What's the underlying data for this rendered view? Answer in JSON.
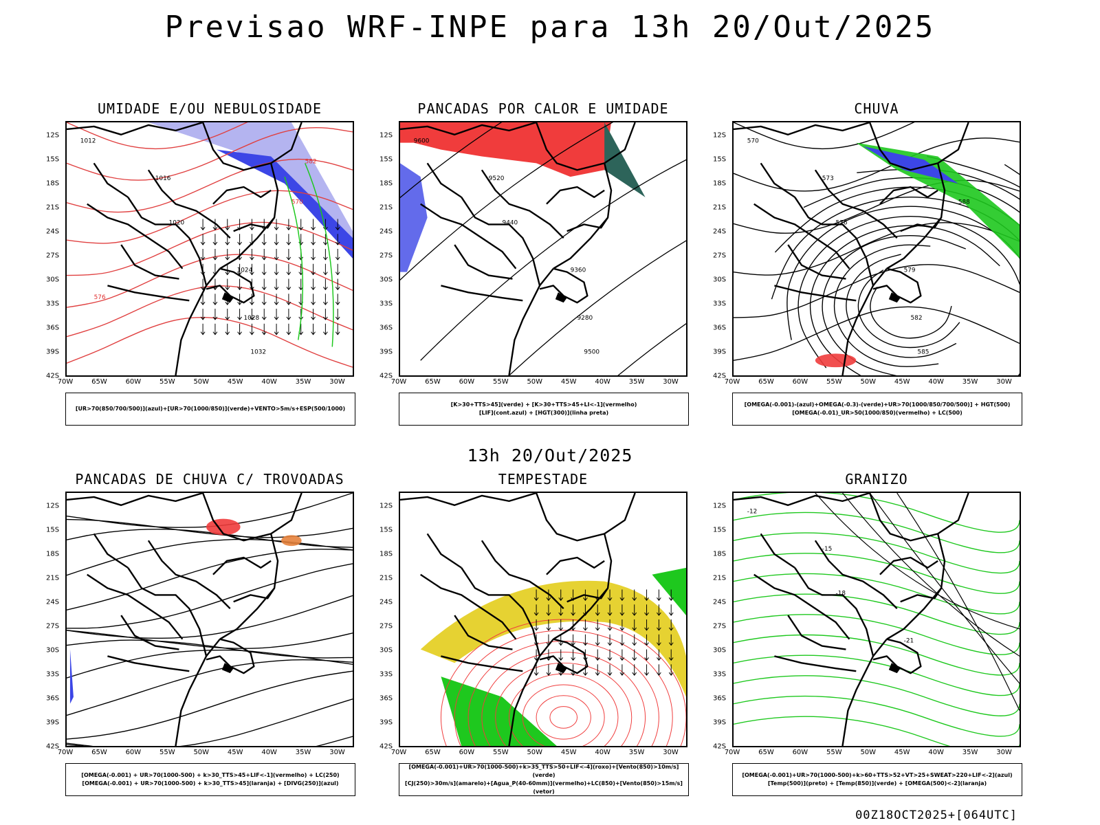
{
  "main_title": "Previsao WRF-INPE  para 13h 20/Out/2025",
  "mid_title": "13h 20/Out/2025",
  "footer": "00Z18OCT2025+[064UTC]",
  "lat_labels": [
    "12S",
    "15S",
    "18S",
    "21S",
    "24S",
    "27S",
    "30S",
    "33S",
    "36S",
    "39S",
    "42S"
  ],
  "lon_labels": [
    "70W",
    "65W",
    "60W",
    "55W",
    "50W",
    "45W",
    "40W",
    "35W",
    "30W"
  ],
  "colors": {
    "blue": "#3c46e6",
    "lavender": "#b4b4f0",
    "green": "#1ec81e",
    "red": "#f03c3c",
    "yellow": "#e6d232",
    "orange": "#e6823c",
    "teal": "#2d645a"
  },
  "panels": [
    {
      "title": "UMIDADE E/OU NEBULOSIDADE",
      "legend": [
        "[UR>70(850/700/500)](azul)+[UR>70(1000/850)](verde)+VENTO>5m/s+ESP(500/1000)"
      ],
      "labels": [
        "1012",
        "1016",
        "1020",
        "1024",
        "1028",
        "1032",
        "570",
        "576",
        "582"
      ]
    },
    {
      "title": "PANCADAS POR CALOR E UMIDADE",
      "legend": [
        "[K>30+TTS>45](verde) + [K>30+TTS>45+LI<-1](vermelho)",
        "[LIF](cont.azul) + [HGT(300)](linha preta)"
      ],
      "labels": [
        "9600",
        "9520",
        "9440",
        "9360",
        "9280",
        "9500"
      ]
    },
    {
      "title": "CHUVA",
      "legend": [
        "[OMEGA(-0.001)-(azul)+OMEGA(-0.3)-(verde)+UR>70(1000/850/700/500)] + HGT(500)",
        "[OMEGA(-0.01)_UR>50(1000/850)(vermelho) + LC(500)"
      ],
      "labels": [
        "570",
        "573",
        "576",
        "579",
        "582",
        "585",
        "588"
      ]
    },
    {
      "title": "PANCADAS DE CHUVA C/ TROVOADAS",
      "legend": [
        "[OMEGA(-0.001) + UR>70(1000-500) + k>30_TTS>45+LIF<-1](vermelho) + LC(250)",
        "[OMEGA(-0.001) + UR>70(1000-500) + k>30_TTS>45](laranja) + [DIVG(250)](azul)"
      ],
      "labels": []
    },
    {
      "title": "TEMPESTADE",
      "legend": [
        "[OMEGA(-0.001)+UR>70(1000-500)+k>35_TTS>50+LIF<-4](roxo)+[Vento(850)>10m/s](verde)",
        "[CJ(250)>30m/s](amarelo)+[Agua_P(40-60mm)](vermelho)+LC(850)+[Vento(850)>15m/s](vetor)"
      ],
      "labels": []
    },
    {
      "title": "GRANIZO",
      "legend": [
        "[OMEGA(-0.001)+UR>70(1000-500)+k>60+TTS>52+VT>25+SWEAT>220+LIF<-2](azul)",
        "[Temp(500)](preto) + [Temp(850)](verde) + [OMEGA(500)<-2](laranja)"
      ],
      "labels": [
        "-12",
        "-15",
        "-18",
        "-21"
      ]
    }
  ]
}
